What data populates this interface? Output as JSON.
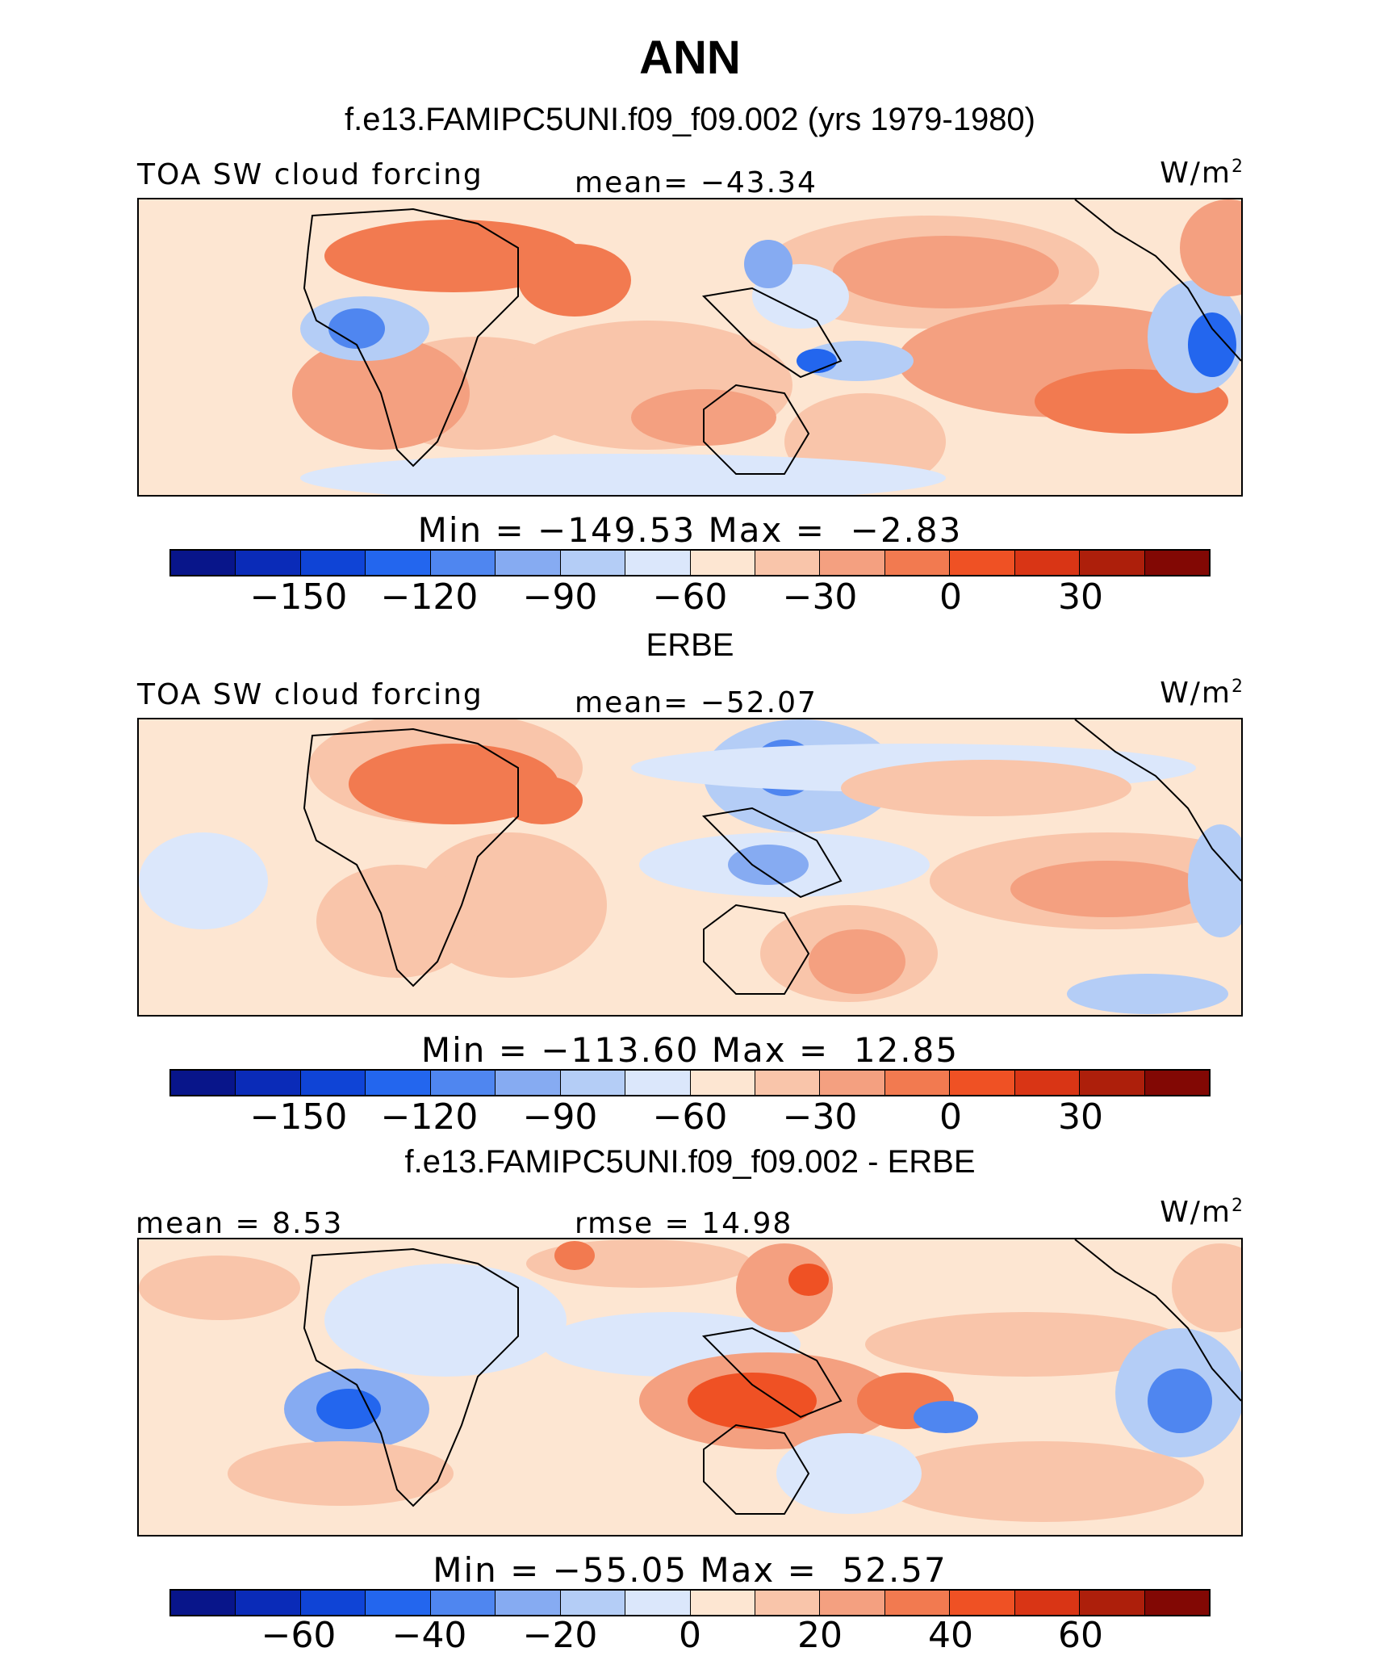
{
  "figure": {
    "title": "ANN",
    "case_title": "f.e13.FAMIPC5UNI.f09_f09.002 (yrs 1979-1980)"
  },
  "colors": {
    "palette": [
      "#08158a",
      "#0a2bb8",
      "#0f44d6",
      "#2366ee",
      "#4f86f0",
      "#86abf2",
      "#b4cdf6",
      "#dbe7fb",
      "#fde6d2",
      "#f9c5aa",
      "#f4a080",
      "#f27a50",
      "#ef5124",
      "#d93515",
      "#ad1f0b",
      "#820804"
    ],
    "land_outline": "#000000"
  },
  "panels": [
    {
      "id": "model",
      "panel_title": "",
      "left_label": "TOA SW cloud forcing",
      "mid_label": "mean= −43.34",
      "units": "W/m",
      "units_sup": "2",
      "minmax": "Min = −149.53 Max =  −2.83",
      "ticks": [
        "−150",
        "−120",
        "−90",
        "−60",
        "−30",
        "0",
        "30"
      ]
    },
    {
      "id": "obs",
      "panel_title": "ERBE",
      "left_label": "TOA SW cloud forcing",
      "mid_label": "mean= −52.07",
      "units": "W/m",
      "units_sup": "2",
      "minmax": "Min = −113.60 Max =  12.85",
      "ticks": [
        "−150",
        "−120",
        "−90",
        "−60",
        "−30",
        "0",
        "30"
      ]
    },
    {
      "id": "diff",
      "panel_title": "f.e13.FAMIPC5UNI.f09_f09.002 - ERBE",
      "left_label": "mean =  8.53",
      "mid_label": "rmse =  14.98",
      "units": "W/m",
      "units_sup": "2",
      "minmax": "Min = −55.05 Max =  52.57",
      "ticks": [
        "−60",
        "−40",
        "−20",
        "0",
        "20",
        "40",
        "60"
      ]
    }
  ]
}
